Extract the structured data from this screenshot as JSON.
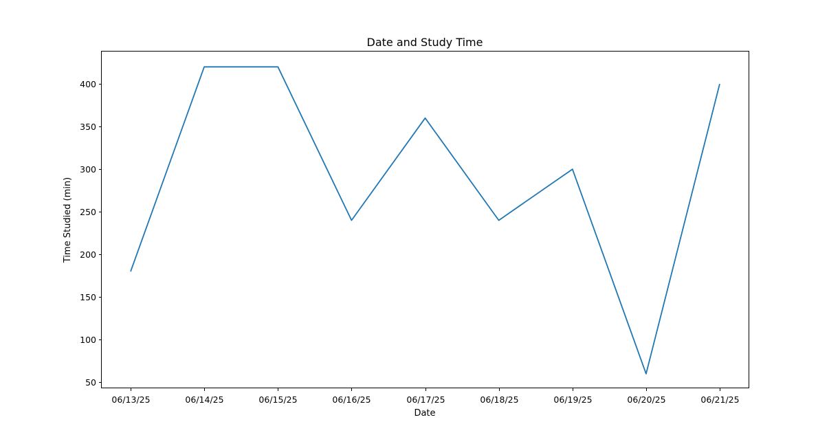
{
  "chart_data": {
    "type": "line",
    "title": "Date and Study Time",
    "xlabel": "Date",
    "ylabel": "Time Studied (min)",
    "categories": [
      "06/13/25",
      "06/14/25",
      "06/15/25",
      "06/16/25",
      "06/17/25",
      "06/18/25",
      "06/19/25",
      "06/20/25",
      "06/21/25"
    ],
    "series": [
      {
        "values": [
          180,
          420,
          420,
          240,
          360,
          240,
          300,
          60,
          400
        ],
        "color": "#1f77b4"
      }
    ],
    "ylim": [
      43,
      438
    ],
    "yticks": [
      50,
      100,
      150,
      200,
      250,
      300,
      350,
      400
    ],
    "grid": false,
    "legend": "none"
  }
}
